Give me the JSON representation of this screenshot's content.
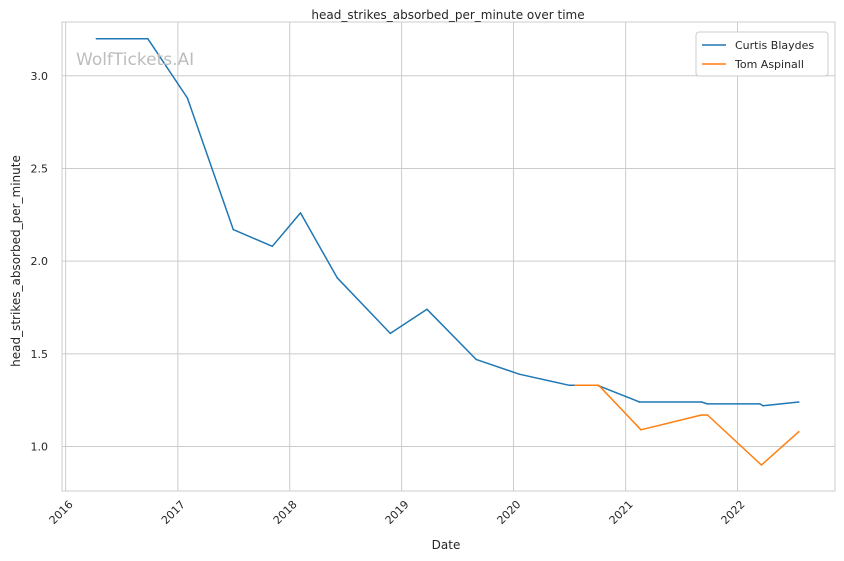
{
  "watermark": "WolfTickets.AI",
  "chart_data": {
    "type": "line",
    "title": "head_strikes_absorbed_per_minute over time",
    "xlabel": "Date",
    "ylabel": "head_strikes_absorbed_per_minute",
    "x_ticks": [
      "2016",
      "2017",
      "2018",
      "2019",
      "2020",
      "2021",
      "2022"
    ],
    "y_ticks": [
      "1.0",
      "1.5",
      "2.0",
      "2.5",
      "3.0"
    ],
    "xlim": [
      "2015-12-20",
      "2022-11-15"
    ],
    "ylim": [
      0.76,
      3.29
    ],
    "grid": true,
    "legend_position": "top-right",
    "series": [
      {
        "name": "Curtis Blaydes",
        "color": "#1f77b4",
        "points": [
          [
            "2016-04-10",
            3.2
          ],
          [
            "2016-09-25",
            3.2
          ],
          [
            "2017-02-01",
            2.88
          ],
          [
            "2017-07-01",
            2.17
          ],
          [
            "2017-11-05",
            2.08
          ],
          [
            "2018-02-05",
            2.26
          ],
          [
            "2018-06-05",
            1.91
          ],
          [
            "2018-11-25",
            1.61
          ],
          [
            "2019-03-25",
            1.74
          ],
          [
            "2019-09-01",
            1.47
          ],
          [
            "2020-01-20",
            1.39
          ],
          [
            "2020-07-01",
            1.33
          ],
          [
            "2020-10-01",
            1.33
          ],
          [
            "2021-02-15",
            1.24
          ],
          [
            "2021-09-05",
            1.24
          ],
          [
            "2021-09-25",
            1.23
          ],
          [
            "2022-03-15",
            1.23
          ],
          [
            "2022-03-25",
            1.22
          ],
          [
            "2022-07-20",
            1.24
          ]
        ]
      },
      {
        "name": "Tom Aspinall",
        "color": "#ff7f0e",
        "points": [
          [
            "2020-07-20",
            1.33
          ],
          [
            "2020-10-05",
            1.33
          ],
          [
            "2021-02-20",
            1.09
          ],
          [
            "2021-09-05",
            1.17
          ],
          [
            "2021-09-25",
            1.17
          ],
          [
            "2022-03-20",
            0.9
          ],
          [
            "2022-07-20",
            1.08
          ]
        ]
      }
    ]
  }
}
